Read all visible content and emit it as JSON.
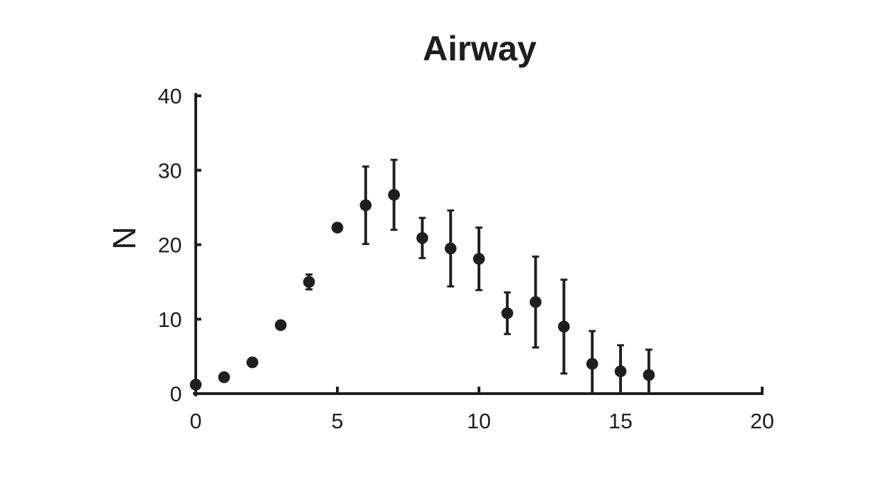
{
  "chart_data": {
    "type": "scatter",
    "title": "Airway",
    "xlabel": "",
    "ylabel": "N",
    "xlim": [
      0,
      20
    ],
    "ylim": [
      0,
      40
    ],
    "xticks": [
      0,
      5,
      10,
      15,
      20
    ],
    "yticks": [
      0,
      10,
      20,
      30,
      40
    ],
    "grid": false,
    "legend": "none",
    "color": "#1e1e1e",
    "series": [
      {
        "x": [
          0,
          1,
          2,
          3,
          4,
          5,
          6,
          7,
          8,
          9,
          10,
          11,
          12,
          13,
          14,
          15,
          16
        ],
        "y": [
          1.2,
          2.2,
          4.2,
          9.2,
          15.0,
          22.3,
          25.3,
          26.7,
          20.9,
          19.5,
          18.1,
          10.8,
          12.3,
          9.0,
          4.0,
          3.0,
          2.5
        ],
        "error": [
          0,
          0,
          0,
          0.4,
          1.0,
          0.4,
          5.2,
          4.7,
          2.7,
          5.1,
          4.2,
          2.8,
          6.1,
          6.3,
          4.4,
          3.5,
          3.4
        ]
      }
    ]
  }
}
